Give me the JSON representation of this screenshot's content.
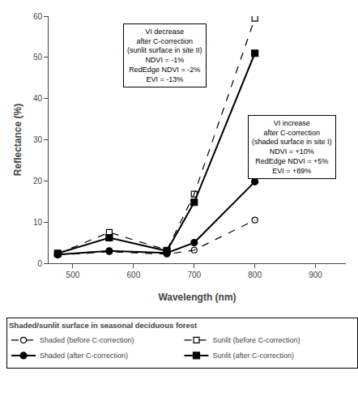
{
  "chart_data": {
    "type": "line",
    "x": [
      475,
      560,
      655,
      700,
      800
    ],
    "xlim": [
      460,
      950
    ],
    "ylim": [
      0,
      60
    ],
    "xticks": [
      500,
      600,
      700,
      800,
      900
    ],
    "yticks": [
      0,
      10,
      20,
      30,
      40,
      50,
      60
    ],
    "xlabel": "Wavelength (nm)",
    "ylabel": "Reflectance (%)",
    "grid": false,
    "legend": "bottom",
    "legend_title": "Shaded/sunlit surface in seasonal deciduous forest",
    "series": [
      {
        "name": "Shaded (before C-correction)",
        "color": "black",
        "marker": "circle-open",
        "line_style": "dash",
        "values": [
          2.0,
          2.8,
          2.2,
          3.2,
          10.5
        ]
      },
      {
        "name": "Sunlit (before C-correction)",
        "color": "black",
        "marker": "square-open",
        "line_style": "dash",
        "values": [
          2.3,
          7.5,
          3.2,
          16.8,
          59.5
        ]
      },
      {
        "name": "Shaded (after C-correction)",
        "color": "black",
        "marker": "circle",
        "line_style": "solid",
        "values": [
          2.1,
          3.0,
          2.5,
          5.0,
          19.8
        ]
      },
      {
        "name": "Sunlit (after C-correction)",
        "color": "black",
        "marker": "square",
        "line_style": "solid",
        "values": [
          2.4,
          6.2,
          3.0,
          14.8,
          51.0
        ]
      }
    ],
    "annotations": [
      "VI decrease\nafter C-correction\n(sunlit surface in site II)\nNDVI = -1%\nRedEdge NDVI = -2%\nEVI = -13%",
      "VI increase\nafter C-correction\n(shaded surface in site I)\nNDVI = +10%\nRedEdge NDVI = +5%\nEVI = +89%"
    ]
  }
}
